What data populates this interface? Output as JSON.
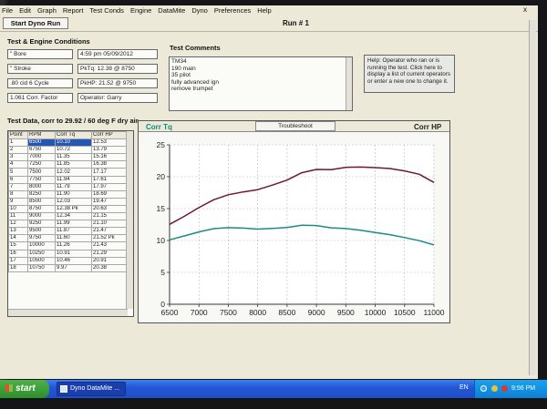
{
  "menu": [
    "File",
    "Edit",
    "Graph",
    "Report",
    "Test Conds",
    "Engine",
    "DataMite",
    "Dyno",
    "Preferences",
    "Help"
  ],
  "window_close": "x",
  "toolbar": {
    "start_label": "Start Dyno Run",
    "run_number": "Run # 1"
  },
  "conditions": {
    "title": "Test & Engine Conditions",
    "bore": "\" Bore",
    "datetime": "4:59 pm  05/09/2012",
    "stroke": "\" Stroke",
    "pk_tq": "PkTq: 12.38 @ 8750",
    "cid": ".80 cid  6 Cycle",
    "pk_hp": "PkHP: 21.52 @ 9750",
    "corr_factor": "1.061 Corr. Factor",
    "operator": "Operator: Garry"
  },
  "comments": {
    "title": "Test Comments",
    "lines": [
      "TM34",
      "190 main",
      "35 pilot",
      "fully advanced ign",
      "remove trumpet"
    ]
  },
  "help_text": "Help:  Operator who ran or is running the test.  Click here to display a list of current operators or enter a new one to change it.",
  "table": {
    "title": "Test Data, corr to 29.92 / 60 deg F dry air",
    "headers": [
      "Point",
      "RPM",
      "Corr Tq",
      "Corr HP"
    ],
    "rows": [
      [
        "1",
        "6500",
        "10.10",
        "12.53"
      ],
      [
        "2",
        "6750",
        "10.72",
        "13.79"
      ],
      [
        "3",
        "7000",
        "11.35",
        "15.16"
      ],
      [
        "4",
        "7250",
        "11.85",
        "16.38"
      ],
      [
        "5",
        "7500",
        "12.02",
        "17.17"
      ],
      [
        "6",
        "7750",
        "11.94",
        "17.61"
      ],
      [
        "7",
        "8000",
        "11.79",
        "17.97"
      ],
      [
        "8",
        "8250",
        "11.90",
        "18.69"
      ],
      [
        "9",
        "8500",
        "12.03",
        "19.47"
      ],
      [
        "10",
        "8750",
        "12.38 Pk",
        "20.63"
      ],
      [
        "11",
        "9000",
        "12.34",
        "21.15"
      ],
      [
        "12",
        "9250",
        "11.99",
        "21.10"
      ],
      [
        "13",
        "9500",
        "11.87",
        "21.47"
      ],
      [
        "14",
        "9750",
        "11.60",
        "21.52 Pk"
      ],
      [
        "15",
        "10000",
        "11.26",
        "21.43"
      ],
      [
        "16",
        "10250",
        "10.91",
        "21.29"
      ],
      [
        "17",
        "10500",
        "10.46",
        "20.91"
      ],
      [
        "18",
        "10750",
        "9.97",
        "20.38"
      ]
    ]
  },
  "chart_header": {
    "tq_label": "Corr Tq",
    "troubleshoot": "Troubleshoot",
    "hp_label": "Corr HP"
  },
  "chart_data": {
    "type": "line",
    "x": [
      6500,
      6750,
      7000,
      7250,
      7500,
      7750,
      8000,
      8250,
      8500,
      8750,
      9000,
      9250,
      9500,
      9750,
      10000,
      10250,
      10500,
      10750,
      11000
    ],
    "series": [
      {
        "name": "Corr Tq",
        "color": "#1a8a8c",
        "values": [
          10.1,
          10.72,
          11.35,
          11.85,
          12.02,
          11.94,
          11.79,
          11.9,
          12.03,
          12.38,
          12.34,
          11.99,
          11.87,
          11.6,
          11.26,
          10.91,
          10.46,
          9.97,
          9.3
        ]
      },
      {
        "name": "Corr HP",
        "color": "#6e1838",
        "values": [
          12.53,
          13.79,
          15.16,
          16.38,
          17.17,
          17.61,
          17.97,
          18.69,
          19.47,
          20.63,
          21.15,
          21.1,
          21.47,
          21.52,
          21.43,
          21.29,
          20.91,
          20.38,
          19.1
        ]
      }
    ],
    "xlim": [
      6500,
      11000
    ],
    "ylim": [
      0,
      25
    ],
    "x_ticks": [
      6500,
      7000,
      7500,
      8000,
      8500,
      9000,
      9500,
      10000,
      10500,
      11000
    ],
    "y_ticks": [
      0,
      5,
      10,
      15,
      20,
      25
    ],
    "grid": true,
    "title": "",
    "xlabel": "",
    "ylabel": ""
  },
  "taskbar": {
    "start_label": "start",
    "task_label": "Dyno DataMite ...",
    "lang": "EN",
    "clock": "9:56 PM"
  }
}
